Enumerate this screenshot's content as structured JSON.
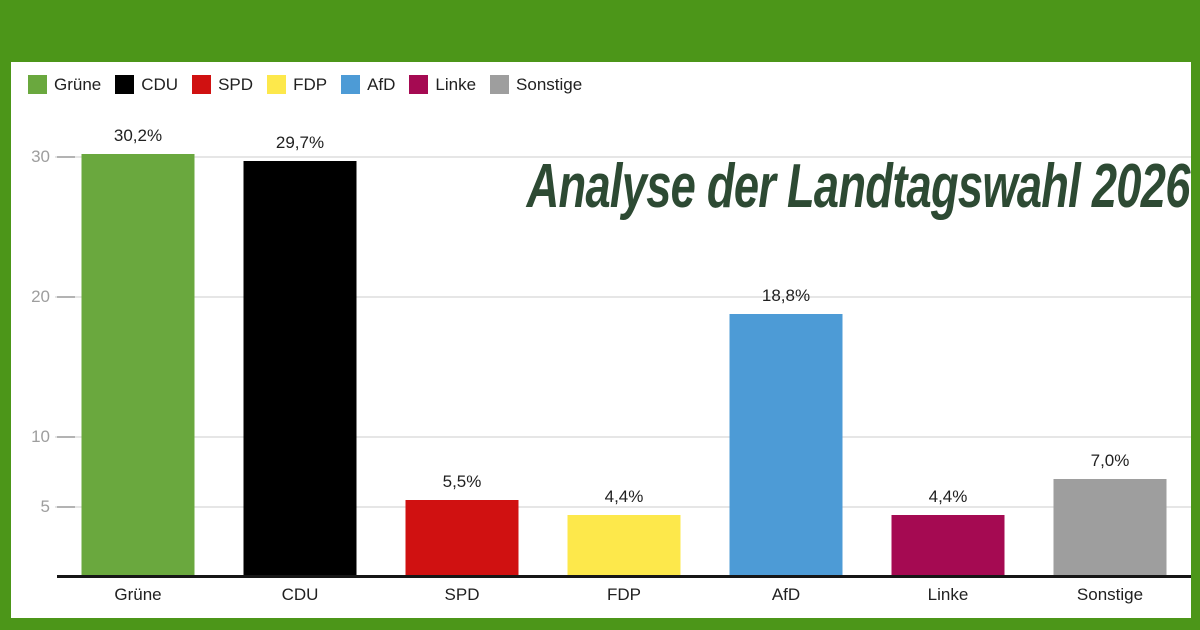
{
  "frame": {
    "background_color": "#4c9619"
  },
  "title": {
    "text": "Analyse der Landtagswahl 2026",
    "color": "#2d4a33"
  },
  "palette": {
    "gridline": "#e6e6e6",
    "axis_line": "#161616",
    "y_tick_label": "#9e9e9e",
    "text_dark": "#212121"
  },
  "chart_data": {
    "type": "bar",
    "title": "Analyse der Landtagswahl 2026",
    "categories": [
      "Grüne",
      "CDU",
      "SPD",
      "FDP",
      "AfD",
      "Linke",
      "Sonstige"
    ],
    "values": [
      30.2,
      29.7,
      5.5,
      4.4,
      18.8,
      4.4,
      7.0
    ],
    "value_labels": [
      "30,2%",
      "29,7%",
      "5,5%",
      "4,4%",
      "18,8%",
      "4,4%",
      "7,0%"
    ],
    "bar_colors": [
      "#6aa83e",
      "#000000",
      "#d01111",
      "#fde84b",
      "#4d9bd6",
      "#a50a52",
      "#9e9e9e"
    ],
    "y_ticks": [
      5,
      10,
      20,
      30
    ],
    "ylim": [
      0,
      33
    ],
    "xlabel": "",
    "ylabel": "",
    "grid": true,
    "legend_entries": [
      "Grüne",
      "CDU",
      "SPD",
      "FDP",
      "AfD",
      "Linke",
      "Sonstige"
    ],
    "legend_position": "top-left"
  }
}
